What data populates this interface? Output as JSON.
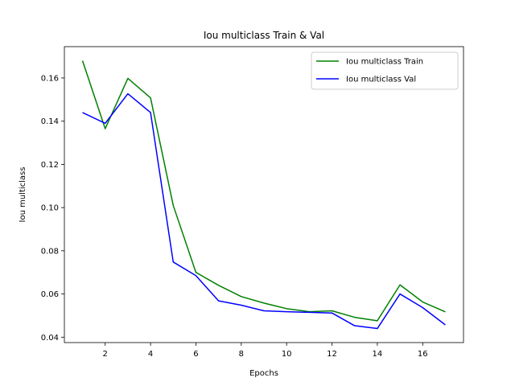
{
  "chart_data": {
    "type": "line",
    "title": "Iou multiclass Train & Val",
    "xlabel": "Epochs",
    "ylabel": "Iou multiclass",
    "xlim": [
      0.2,
      17.8
    ],
    "ylim": [
      0.0375,
      0.1745
    ],
    "xticks": [
      2,
      4,
      6,
      8,
      10,
      12,
      14,
      16
    ],
    "yticks": [
      0.04,
      0.06,
      0.08,
      0.1,
      0.12,
      0.14,
      0.16
    ],
    "ytick_labels": [
      "0.04",
      "0.06",
      "0.08",
      "0.10",
      "0.12",
      "0.14",
      "0.16"
    ],
    "grid": false,
    "legend_position": "top-right",
    "x": [
      1,
      2,
      3,
      4,
      5,
      6,
      7,
      8,
      9,
      10,
      11,
      12,
      13,
      14,
      15,
      16,
      17
    ],
    "series": [
      {
        "name": "Iou multiclass Train",
        "color": "#008000",
        "values": [
          0.168,
          0.1365,
          0.1598,
          0.1508,
          0.101,
          0.07,
          0.064,
          0.0588,
          0.0558,
          0.0532,
          0.0518,
          0.0522,
          0.0492,
          0.0476,
          0.0642,
          0.0563,
          0.0517
        ]
      },
      {
        "name": "Iou multiclass Val",
        "color": "#0000ff",
        "values": [
          0.144,
          0.139,
          0.1527,
          0.144,
          0.0748,
          0.0685,
          0.0568,
          0.0548,
          0.0522,
          0.0518,
          0.0515,
          0.0512,
          0.0453,
          0.044,
          0.06,
          0.0537,
          0.0457
        ]
      }
    ]
  }
}
